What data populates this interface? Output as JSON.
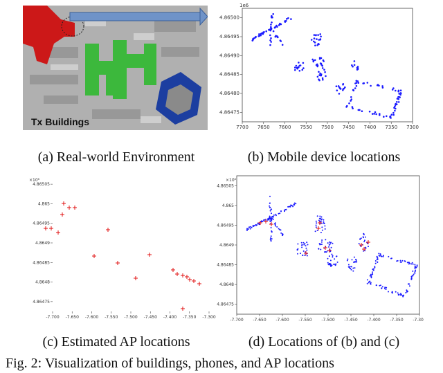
{
  "panels": {
    "a": {
      "caption": "(a) Real-world Environment",
      "label": "Tx Buildings"
    },
    "b": {
      "caption": "(b) Mobile device locations"
    },
    "c": {
      "caption": "(c) Estimated AP locations"
    },
    "d": {
      "caption": "(d) Locations of (b) and (c)"
    }
  },
  "figure_caption": "Fig. 2: Visualization of buildings, phones, and AP locations",
  "colors": {
    "phones": "#1a1aff",
    "aps": "#e01010",
    "building_red": "#cc1818",
    "building_green": "#3cb83c",
    "building_blue": "#1c3ea0"
  },
  "chart_data": [
    {
      "id": "b",
      "type": "scatter",
      "x_ticks": [
        "7700",
        "7650",
        "7600",
        "7550",
        "7500",
        "7450",
        "7400",
        "7350",
        "7300"
      ],
      "y_ticks": [
        "4.86500",
        "4.86495",
        "4.86490",
        "4.86485",
        "4.86480",
        "4.86475"
      ],
      "y_offset": "1e6",
      "xlim": [
        7700,
        7300
      ],
      "ylim": [
        4.86473,
        4.86502
      ],
      "series": [
        {
          "color": "#1a1aff",
          "points": []
        }
      ]
    },
    {
      "id": "c",
      "type": "scatter",
      "x_ticks": [
        "-7.700",
        "-7.650",
        "-7.600",
        "-7.550",
        "-7.500",
        "-7.450",
        "-7.400",
        "-7.350",
        "-7.300"
      ],
      "y_ticks": [
        "4.86505",
        "4.865",
        "4.86495",
        "4.8649",
        "4.86485",
        "4.8648",
        "4.86475"
      ],
      "y_offset": "×10⁶",
      "series": [
        {
          "color": "#e01010",
          "points": []
        }
      ]
    },
    {
      "id": "d",
      "type": "scatter",
      "x_ticks": [
        "-7.700",
        "-7.650",
        "-7.600",
        "-7.550",
        "-7.500",
        "-7.450",
        "-7.400",
        "-7.350",
        "-7.300"
      ],
      "y_ticks": [
        "4.86505",
        "4.865",
        "4.86495",
        "4.8649",
        "4.86485",
        "4.8648",
        "4.86475"
      ],
      "y_offset": "×10⁶",
      "series": [
        {
          "color": "#1a1aff"
        },
        {
          "color": "#e01010"
        }
      ]
    }
  ]
}
